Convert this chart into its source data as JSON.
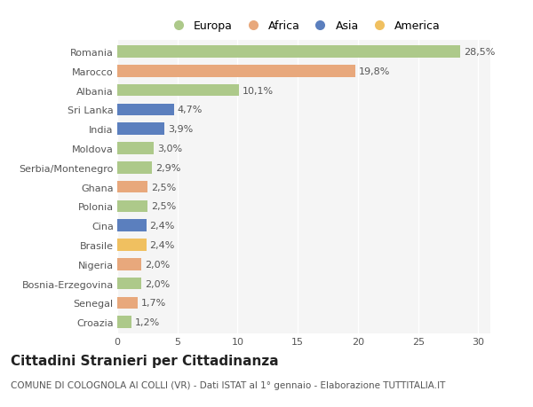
{
  "categories": [
    "Romania",
    "Marocco",
    "Albania",
    "Sri Lanka",
    "India",
    "Moldova",
    "Serbia/Montenegro",
    "Ghana",
    "Polonia",
    "Cina",
    "Brasile",
    "Nigeria",
    "Bosnia-Erzegovina",
    "Senegal",
    "Croazia"
  ],
  "values": [
    28.5,
    19.8,
    10.1,
    4.7,
    3.9,
    3.0,
    2.9,
    2.5,
    2.5,
    2.4,
    2.4,
    2.0,
    2.0,
    1.7,
    1.2
  ],
  "labels": [
    "28,5%",
    "19,8%",
    "10,1%",
    "4,7%",
    "3,9%",
    "3,0%",
    "2,9%",
    "2,5%",
    "2,5%",
    "2,4%",
    "2,4%",
    "2,0%",
    "2,0%",
    "1,7%",
    "1,2%"
  ],
  "continents": [
    "Europa",
    "Africa",
    "Europa",
    "Asia",
    "Asia",
    "Europa",
    "Europa",
    "Africa",
    "Europa",
    "Asia",
    "America",
    "Africa",
    "Europa",
    "Africa",
    "Europa"
  ],
  "colors": {
    "Europa": "#adc98a",
    "Africa": "#e8a87c",
    "Asia": "#5b7fbe",
    "America": "#f0c060"
  },
  "legend_order": [
    "Europa",
    "Africa",
    "Asia",
    "America"
  ],
  "title": "Cittadini Stranieri per Cittadinanza",
  "subtitle": "COMUNE DI COLOGNOLA AI COLLI (VR) - Dati ISTAT al 1° gennaio - Elaborazione TUTTITALIA.IT",
  "xlim": [
    0,
    31
  ],
  "xticks": [
    0,
    5,
    10,
    15,
    20,
    25,
    30
  ],
  "bg_color": "#ffffff",
  "plot_bg_color": "#f5f5f5",
  "grid_color": "#ffffff",
  "title_fontsize": 11,
  "subtitle_fontsize": 7.5,
  "label_fontsize": 8,
  "tick_fontsize": 8
}
